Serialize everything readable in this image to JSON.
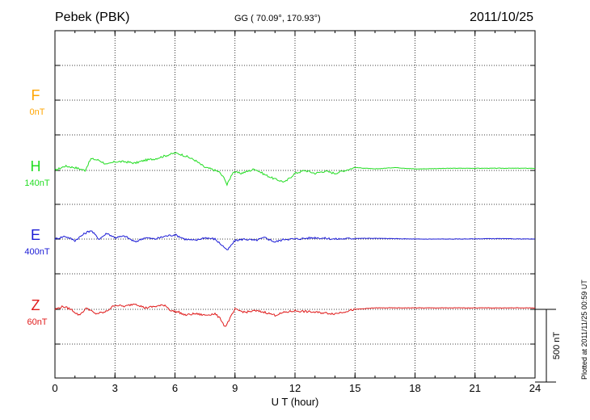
{
  "header": {
    "station": "Pebek (PBK)",
    "coords": "GG ( 70.09°, 170.93°)",
    "date": "2011/10/25"
  },
  "footer": {
    "plotted": "Plotted at 2011/11/25 00:59 UT"
  },
  "components": [
    {
      "letter": "F",
      "base": "0nT",
      "color": "#ffa500"
    },
    {
      "letter": "H",
      "base": "140nT",
      "color": "#22dd22"
    },
    {
      "letter": "E",
      "base": "400nT",
      "color": "#1a1ad6"
    },
    {
      "letter": "Z",
      "base": "60nT",
      "color": "#e01a1a"
    }
  ],
  "scale_bar": {
    "label": "500 nT"
  },
  "chart_data": {
    "type": "line",
    "title": "Pebek (PBK)",
    "xlabel": "U T (hour)",
    "ylabel": "",
    "xlim": [
      0,
      24
    ],
    "xticks": [
      "0",
      "3",
      "6",
      "9",
      "12",
      "15",
      "18",
      "21",
      "24"
    ],
    "grid": true,
    "series": [
      {
        "name": "H",
        "color": "#22dd22",
        "baseline": "140nT",
        "x": [
          0,
          0.5,
          1.0,
          1.5,
          1.8,
          2.2,
          2.6,
          3.0,
          3.5,
          4.0,
          4.5,
          5.0,
          5.5,
          6.0,
          6.3,
          6.6,
          7.0,
          7.5,
          7.8,
          8.2,
          8.5,
          8.6,
          8.9,
          9.3,
          10.0,
          10.5,
          11.0,
          11.5,
          12.0,
          12.5,
          13.0,
          13.5,
          14.0,
          14.5,
          15.0,
          16.0,
          17.0,
          18.0,
          20.0,
          22.0,
          24.0
        ],
        "y": [
          0,
          30,
          20,
          0,
          80,
          70,
          40,
          60,
          60,
          50,
          70,
          80,
          100,
          120,
          110,
          95,
          70,
          20,
          10,
          -10,
          -60,
          -100,
          -10,
          -20,
          10,
          -30,
          -60,
          -80,
          -20,
          0,
          -20,
          -5,
          -20,
          0,
          20,
          10,
          20,
          10,
          15,
          15,
          15
        ]
      },
      {
        "name": "E",
        "color": "#1a1ad6",
        "baseline": "400nT",
        "x": [
          0,
          0.5,
          1.0,
          1.5,
          1.8,
          2.2,
          2.6,
          3.0,
          3.5,
          4.0,
          4.5,
          5.0,
          5.5,
          6.0,
          6.5,
          7.0,
          7.5,
          8.0,
          8.5,
          8.6,
          9.0,
          9.5,
          10.0,
          10.5,
          11.0,
          11.5,
          12.0,
          13.0,
          14.0,
          15.0,
          16.0,
          18.0,
          20.0,
          22.0,
          24.0
        ],
        "y": [
          0,
          20,
          -10,
          40,
          60,
          0,
          40,
          10,
          20,
          -20,
          10,
          0,
          20,
          30,
          0,
          -10,
          10,
          0,
          -60,
          -80,
          -10,
          0,
          -10,
          10,
          -20,
          0,
          0,
          10,
          0,
          5,
          5,
          0,
          0,
          3,
          0
        ]
      },
      {
        "name": "Z",
        "color": "#e01a1a",
        "baseline": "60nT",
        "x": [
          0,
          0.4,
          0.8,
          1.2,
          1.6,
          2.0,
          2.5,
          3.0,
          3.5,
          4.0,
          4.5,
          5.0,
          5.5,
          5.8,
          6.2,
          6.5,
          7.0,
          7.5,
          8.0,
          8.3,
          8.5,
          8.6,
          9.0,
          9.5,
          10.0,
          10.5,
          11.0,
          11.5,
          12.0,
          13.0,
          14.0,
          15.0,
          16.0,
          18.0,
          20.0,
          22.0,
          24.0
        ],
        "y": [
          0,
          20,
          0,
          -40,
          10,
          -30,
          -20,
          30,
          20,
          40,
          10,
          20,
          30,
          -10,
          -20,
          -40,
          -30,
          -40,
          -30,
          -70,
          -120,
          -100,
          0,
          -20,
          -10,
          -20,
          -40,
          -20,
          -10,
          -20,
          -30,
          0,
          10,
          10,
          10,
          10,
          10
        ]
      }
    ]
  }
}
